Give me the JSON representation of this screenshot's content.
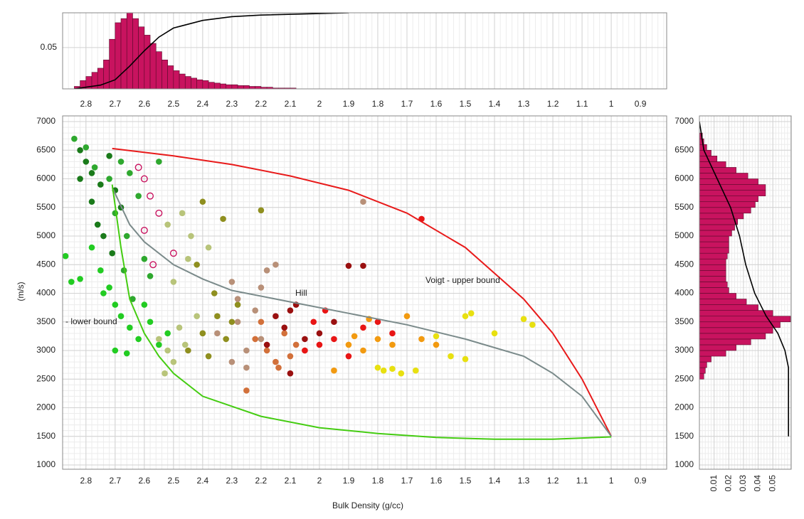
{
  "chart_data": [
    {
      "type": "histogram",
      "orientation": "vertical",
      "color": "#c8135f",
      "bins": [
        2.84,
        2.82,
        2.8,
        2.78,
        2.76,
        2.74,
        2.72,
        2.7,
        2.68,
        2.66,
        2.64,
        2.62,
        2.6,
        2.58,
        2.56,
        2.54,
        2.52,
        2.5,
        2.48,
        2.46,
        2.44,
        2.42,
        2.4,
        2.38,
        2.36,
        2.34,
        2.32,
        2.3,
        2.28,
        2.26,
        2.24,
        2.22,
        2.2,
        2.18,
        2.16,
        2.14,
        2.12,
        2.1,
        2.08
      ],
      "values": [
        0.003,
        0.01,
        0.015,
        0.02,
        0.025,
        0.035,
        0.06,
        0.08,
        0.085,
        0.092,
        0.085,
        0.075,
        0.065,
        0.055,
        0.045,
        0.035,
        0.028,
        0.022,
        0.018,
        0.015,
        0.013,
        0.011,
        0.01,
        0.008,
        0.007,
        0.006,
        0.005,
        0.005,
        0.004,
        0.004,
        0.003,
        0.003,
        0.002,
        0.002,
        0.001,
        0.001,
        0.001,
        0.001
      ],
      "xlim": [
        2.88,
        0.81
      ],
      "ylim": [
        0,
        0.092
      ],
      "xticks": [
        2.8,
        2.7,
        2.6,
        2.5,
        2.4,
        2.3,
        2.2,
        2.1,
        2,
        1.9,
        1.8,
        1.7,
        1.6,
        1.5,
        1.4,
        1.3,
        1.2,
        1.1,
        1,
        0.9
      ],
      "yticks": [
        0.05
      ],
      "grid": true,
      "cdf": {
        "color": "#000000",
        "at": [
          2.84,
          2.75,
          2.7,
          2.65,
          2.6,
          2.55,
          2.5,
          2.4,
          2.3,
          2.2,
          2.0,
          1.9
        ],
        "values": [
          0,
          0.05,
          0.12,
          0.3,
          0.5,
          0.68,
          0.8,
          0.9,
          0.95,
          0.97,
          0.99,
          1.0
        ],
        "lim": [
          0,
          1
        ]
      }
    },
    {
      "type": "scatter",
      "xlabel": "Bulk Density (g/cc)",
      "ylabel": "(m/s)",
      "xlim": [
        2.88,
        0.81
      ],
      "ylim": [
        925,
        7100
      ],
      "xticks": [
        2.8,
        2.7,
        2.6,
        2.5,
        2.4,
        2.3,
        2.2,
        2.1,
        2,
        1.9,
        1.8,
        1.7,
        1.6,
        1.5,
        1.4,
        1.3,
        1.2,
        1.1,
        1,
        0.9
      ],
      "yticks": [
        1000,
        1500,
        2000,
        2500,
        3000,
        3500,
        4000,
        4500,
        5000,
        5500,
        6000,
        6500,
        7000
      ],
      "grid": true,
      "series": [
        {
          "color": "#1a7a1a",
          "x": [
            2.82,
            2.8,
            2.78,
            2.75,
            2.72,
            2.7,
            2.78,
            2.76,
            2.68,
            2.82,
            2.74,
            2.71
          ],
          "y": [
            6500,
            6300,
            6100,
            5900,
            6400,
            5800,
            5600,
            5200,
            5500,
            6000,
            5000,
            4700
          ]
        },
        {
          "color": "#2ea82e",
          "x": [
            2.84,
            2.8,
            2.77,
            2.72,
            2.68,
            2.65,
            2.62,
            2.7,
            2.66,
            2.6,
            2.58,
            2.64,
            2.55,
            2.67
          ],
          "y": [
            6700,
            6550,
            6200,
            6000,
            6300,
            6100,
            5700,
            5400,
            5000,
            4600,
            4300,
            3900,
            6300,
            4400
          ]
        },
        {
          "color": "#22cc22",
          "x": [
            2.87,
            2.85,
            2.82,
            2.78,
            2.75,
            2.72,
            2.7,
            2.68,
            2.65,
            2.62,
            2.6,
            2.58,
            2.55,
            2.7,
            2.74,
            2.66,
            2.52
          ],
          "y": [
            4650,
            4200,
            4250,
            4800,
            4400,
            4100,
            3800,
            3600,
            3400,
            3200,
            3800,
            3500,
            3100,
            3000,
            4000,
            2950,
            3300
          ]
        },
        {
          "color": "#b8c47a",
          "x": [
            2.55,
            2.52,
            2.5,
            2.48,
            2.46,
            2.5,
            2.45,
            2.42,
            2.4,
            2.52,
            2.47,
            2.53,
            2.44,
            2.38
          ],
          "y": [
            3200,
            3000,
            2800,
            3400,
            3100,
            4200,
            4600,
            3600,
            3300,
            5200,
            5400,
            2600,
            5000,
            4800
          ]
        },
        {
          "color": "#8f8f1f",
          "x": [
            2.45,
            2.4,
            2.38,
            2.35,
            2.32,
            2.3,
            2.36,
            2.42,
            2.28,
            2.4,
            2.33,
            2.2
          ],
          "y": [
            3000,
            3300,
            2900,
            3600,
            3200,
            3500,
            4000,
            4500,
            3800,
            5600,
            5300,
            5450
          ]
        },
        {
          "color": "#b89078",
          "x": [
            2.35,
            2.3,
            2.28,
            2.25,
            2.22,
            2.2,
            2.18,
            2.3,
            2.25,
            2.15,
            2.2,
            1.85,
            2.28
          ],
          "y": [
            3300,
            2800,
            3500,
            3000,
            3700,
            4100,
            4400,
            4200,
            2700,
            4500,
            3200,
            5600,
            3900
          ]
        },
        {
          "color": "#d2703a",
          "x": [
            2.22,
            2.18,
            2.15,
            2.12,
            2.1,
            2.08,
            2.2,
            2.14,
            2.05,
            2.25
          ],
          "y": [
            3200,
            3000,
            2800,
            3300,
            2900,
            3100,
            3500,
            2700,
            3000,
            2300
          ]
        },
        {
          "color": "#9a1010",
          "x": [
            2.15,
            2.12,
            2.1,
            2.05,
            2.08,
            2.0,
            1.95,
            1.9,
            1.85,
            2.1,
            2.18
          ],
          "y": [
            3600,
            3400,
            3700,
            3200,
            3800,
            3300,
            3500,
            4480,
            4480,
            2600,
            3100
          ]
        },
        {
          "color": "#e81515",
          "x": [
            2.05,
            2.0,
            1.98,
            1.95,
            2.02,
            1.9,
            1.85,
            1.8,
            1.75,
            1.65
          ],
          "y": [
            3000,
            3100,
            3700,
            3200,
            3500,
            2900,
            3400,
            3500,
            3300,
            5300
          ]
        },
        {
          "color": "#f29a10",
          "x": [
            1.95,
            1.9,
            1.85,
            1.8,
            1.75,
            1.7,
            1.65,
            1.6,
            1.88,
            1.83
          ],
          "y": [
            2650,
            3100,
            3000,
            3200,
            3100,
            3600,
            3200,
            3100,
            3250,
            3550
          ]
        },
        {
          "color": "#e8e010",
          "x": [
            1.8,
            1.78,
            1.75,
            1.72,
            1.6,
            1.55,
            1.5,
            1.48,
            1.4,
            1.3,
            1.27,
            1.67,
            1.5
          ],
          "y": [
            2700,
            2650,
            2680,
            2600,
            3250,
            2900,
            3600,
            3650,
            3300,
            3550,
            3450,
            2650,
            2850
          ]
        },
        {
          "color": "#c8135f",
          "open": true,
          "x": [
            2.62,
            2.6,
            2.58,
            2.55,
            2.6,
            2.5,
            2.57
          ],
          "y": [
            6200,
            6000,
            5700,
            5400,
            5100,
            4700,
            4500
          ]
        }
      ],
      "lines": [
        {
          "color": "#e81a1a",
          "x": [
            2.71,
            2.5,
            2.3,
            2.1,
            1.9,
            1.7,
            1.5,
            1.3,
            1.2,
            1.1,
            1.0
          ],
          "y": [
            6530,
            6400,
            6250,
            6050,
            5800,
            5400,
            4800,
            3900,
            3300,
            2500,
            1500
          ]
        },
        {
          "color": "#7a8a8a",
          "x": [
            2.71,
            2.65,
            2.6,
            2.5,
            2.4,
            2.3,
            2.1,
            1.9,
            1.7,
            1.5,
            1.3,
            1.2,
            1.1,
            1.0
          ],
          "y": [
            5850,
            5200,
            4900,
            4500,
            4250,
            4050,
            3850,
            3650,
            3450,
            3200,
            2900,
            2600,
            2200,
            1500
          ]
        },
        {
          "color": "#44cc11",
          "x": [
            2.71,
            2.68,
            2.65,
            2.6,
            2.55,
            2.5,
            2.4,
            2.2,
            2.0,
            1.8,
            1.6,
            1.4,
            1.2,
            1.0
          ],
          "y": [
            5900,
            4800,
            3900,
            3300,
            2900,
            2600,
            2200,
            1850,
            1650,
            1550,
            1480,
            1450,
            1450,
            1490
          ]
        }
      ],
      "annotations": [
        "Voigt - upper bound",
        "Hill",
        "- lower bound"
      ]
    },
    {
      "type": "histogram",
      "orientation": "horizontal",
      "color": "#c8135f",
      "bins": [
        2500,
        2600,
        2700,
        2800,
        2900,
        3000,
        3100,
        3200,
        3300,
        3400,
        3500,
        3600,
        3700,
        3800,
        3900,
        4000,
        4100,
        4200,
        4300,
        4400,
        4500,
        4600,
        4700,
        4800,
        4900,
        5000,
        5100,
        5200,
        5300,
        5400,
        5500,
        5600,
        5700,
        5800,
        5900,
        6000,
        6100,
        6200,
        6300,
        6400,
        6500,
        6600,
        6700,
        6800
      ],
      "values": [
        0.003,
        0.004,
        0.005,
        0.008,
        0.018,
        0.025,
        0.035,
        0.045,
        0.05,
        0.055,
        0.062,
        0.05,
        0.04,
        0.032,
        0.025,
        0.02,
        0.019,
        0.018,
        0.018,
        0.018,
        0.018,
        0.019,
        0.02,
        0.02,
        0.02,
        0.022,
        0.024,
        0.026,
        0.03,
        0.035,
        0.038,
        0.04,
        0.045,
        0.045,
        0.04,
        0.033,
        0.025,
        0.018,
        0.012,
        0.008,
        0.005,
        0.003,
        0.002
      ],
      "xlim": [
        0,
        0.0625
      ],
      "ylim": [
        925,
        7100
      ],
      "xticks": [
        0.01,
        0.02,
        0.03,
        0.04,
        0.05
      ],
      "yticks": [
        1000,
        1500,
        2000,
        2500,
        3000,
        3500,
        4000,
        4500,
        5000,
        5500,
        6000,
        6500,
        7000
      ],
      "grid": true,
      "cdf": {
        "color": "#000000",
        "at": [
          7000,
          6500,
          6000,
          5500,
          5000,
          4500,
          4000,
          3600,
          3300,
          3000,
          2700,
          1500
        ],
        "values": [
          0,
          0.05,
          0.2,
          0.35,
          0.45,
          0.52,
          0.62,
          0.75,
          0.88,
          0.96,
          1.0,
          1.0
        ],
        "lim": [
          0,
          1.03
        ]
      }
    }
  ]
}
